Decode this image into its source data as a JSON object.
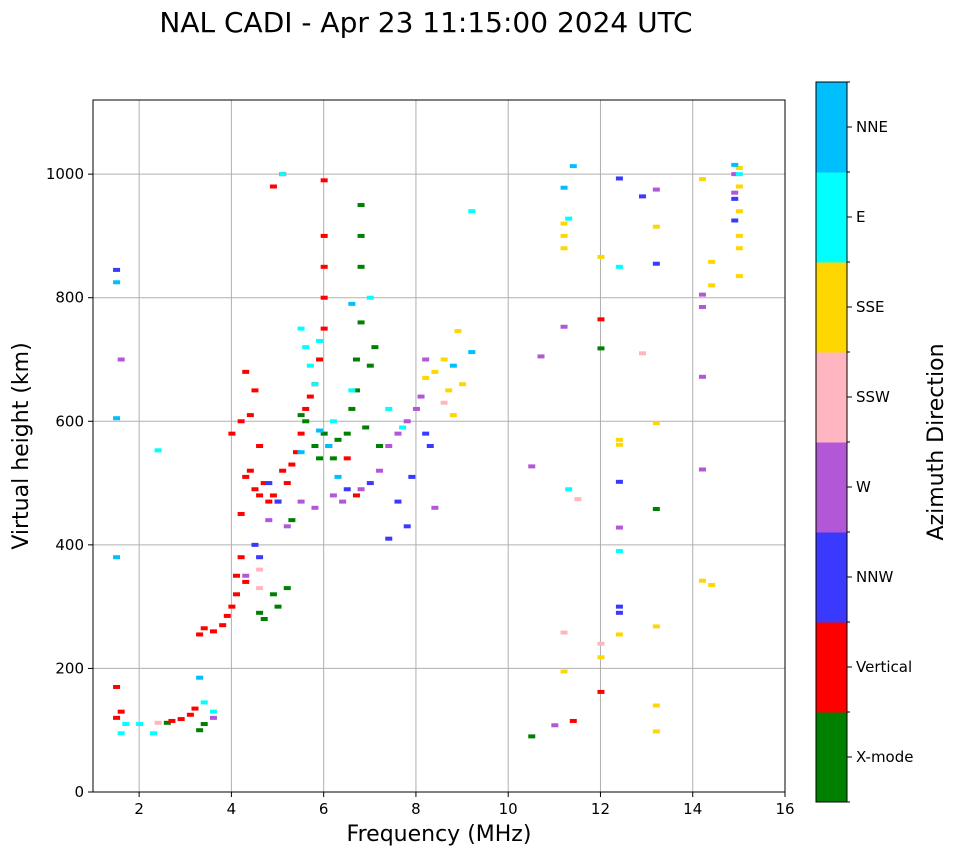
{
  "chart_data": {
    "type": "scatter",
    "title": "NAL CADI - Apr 23 11:15:00 2024 UTC",
    "xlabel": "Frequency (MHz)",
    "ylabel": "Virtual height (km)",
    "xlim": [
      1,
      16
    ],
    "ylim": [
      0,
      1120
    ],
    "xticks": [
      2,
      4,
      6,
      8,
      10,
      12,
      14,
      16
    ],
    "yticks": [
      0,
      200,
      400,
      600,
      800,
      1000
    ],
    "grid": true,
    "colorbar": {
      "title": "Azimuth Direction",
      "categories": [
        {
          "name": "X-mode",
          "color": "#008000"
        },
        {
          "name": "Vertical",
          "color": "#ff0000"
        },
        {
          "name": "NNW",
          "color": "#3a3aff"
        },
        {
          "name": "W",
          "color": "#b257d6"
        },
        {
          "name": "SSW",
          "color": "#ffb6c1"
        },
        {
          "name": "SSE",
          "color": "#ffd700"
        },
        {
          "name": "E",
          "color": "#00ffff"
        },
        {
          "name": "NNE",
          "color": "#00bfff"
        }
      ]
    },
    "series": [
      {
        "name": "X-mode",
        "points": [
          [
            2.6,
            112
          ],
          [
            3.3,
            100
          ],
          [
            3.4,
            110
          ],
          [
            5.0,
            300
          ],
          [
            5.2,
            330
          ],
          [
            4.9,
            320
          ],
          [
            4.6,
            290
          ],
          [
            4.7,
            280
          ],
          [
            5.3,
            440
          ],
          [
            5.5,
            610
          ],
          [
            5.6,
            600
          ],
          [
            5.8,
            560
          ],
          [
            5.9,
            540
          ],
          [
            6.0,
            580
          ],
          [
            6.1,
            560
          ],
          [
            6.2,
            540
          ],
          [
            6.3,
            570
          ],
          [
            6.5,
            580
          ],
          [
            6.6,
            620
          ],
          [
            6.7,
            650
          ],
          [
            6.7,
            700
          ],
          [
            6.8,
            760
          ],
          [
            6.8,
            850
          ],
          [
            6.8,
            900
          ],
          [
            6.8,
            950
          ],
          [
            7.0,
            690
          ],
          [
            7.1,
            720
          ],
          [
            7.2,
            560
          ],
          [
            6.9,
            590
          ],
          [
            10.5,
            90
          ],
          [
            12.0,
            718
          ],
          [
            13.2,
            458
          ]
        ]
      },
      {
        "name": "Vertical",
        "points": [
          [
            1.5,
            170
          ],
          [
            1.5,
            120
          ],
          [
            1.6,
            130
          ],
          [
            2.7,
            115
          ],
          [
            2.9,
            118
          ],
          [
            3.1,
            125
          ],
          [
            3.2,
            135
          ],
          [
            3.3,
            255
          ],
          [
            3.4,
            265
          ],
          [
            3.6,
            260
          ],
          [
            3.8,
            270
          ],
          [
            3.9,
            285
          ],
          [
            4.0,
            300
          ],
          [
            4.1,
            320
          ],
          [
            4.1,
            350
          ],
          [
            4.2,
            380
          ],
          [
            4.3,
            340
          ],
          [
            4.2,
            450
          ],
          [
            4.3,
            510
          ],
          [
            4.4,
            520
          ],
          [
            4.5,
            490
          ],
          [
            4.6,
            480
          ],
          [
            4.7,
            500
          ],
          [
            4.8,
            470
          ],
          [
            4.9,
            480
          ],
          [
            5.0,
            470
          ],
          [
            5.1,
            520
          ],
          [
            5.2,
            500
          ],
          [
            5.3,
            530
          ],
          [
            5.4,
            550
          ],
          [
            5.5,
            580
          ],
          [
            5.6,
            620
          ],
          [
            5.7,
            640
          ],
          [
            5.8,
            660
          ],
          [
            5.9,
            700
          ],
          [
            6.0,
            750
          ],
          [
            6.0,
            800
          ],
          [
            6.0,
            850
          ],
          [
            6.0,
            900
          ],
          [
            6.0,
            990
          ],
          [
            4.0,
            580
          ],
          [
            4.2,
            600
          ],
          [
            4.4,
            610
          ],
          [
            4.6,
            560
          ],
          [
            4.3,
            680
          ],
          [
            4.5,
            650
          ],
          [
            4.9,
            980
          ],
          [
            5.1,
            1000
          ],
          [
            6.5,
            540
          ],
          [
            6.7,
            480
          ],
          [
            11.4,
            115
          ],
          [
            12.0,
            765
          ],
          [
            12.0,
            162
          ]
        ]
      },
      {
        "name": "NNW",
        "points": [
          [
            1.5,
            845
          ],
          [
            4.5,
            400
          ],
          [
            4.6,
            380
          ],
          [
            4.8,
            500
          ],
          [
            5.0,
            470
          ],
          [
            6.5,
            490
          ],
          [
            7.0,
            500
          ],
          [
            7.4,
            410
          ],
          [
            7.6,
            470
          ],
          [
            7.8,
            430
          ],
          [
            7.9,
            510
          ],
          [
            8.2,
            580
          ],
          [
            8.3,
            560
          ],
          [
            12.4,
            300
          ],
          [
            12.4,
            290
          ],
          [
            12.4,
            502
          ],
          [
            12.4,
            993
          ],
          [
            12.9,
            964
          ],
          [
            13.2,
            855
          ],
          [
            14.9,
            925
          ],
          [
            14.9,
            960
          ]
        ]
      },
      {
        "name": "W",
        "points": [
          [
            1.6,
            700
          ],
          [
            3.6,
            120
          ],
          [
            4.3,
            350
          ],
          [
            4.8,
            440
          ],
          [
            5.2,
            430
          ],
          [
            5.5,
            470
          ],
          [
            5.8,
            460
          ],
          [
            6.2,
            480
          ],
          [
            6.4,
            470
          ],
          [
            6.8,
            490
          ],
          [
            7.2,
            520
          ],
          [
            7.4,
            560
          ],
          [
            7.6,
            580
          ],
          [
            7.8,
            600
          ],
          [
            8.0,
            620
          ],
          [
            8.1,
            640
          ],
          [
            8.2,
            700
          ],
          [
            8.4,
            460
          ],
          [
            10.7,
            705
          ],
          [
            10.5,
            527
          ],
          [
            11.2,
            753
          ],
          [
            12.4,
            428
          ],
          [
            13.2,
            975
          ],
          [
            14.2,
            522
          ],
          [
            14.2,
            672
          ],
          [
            14.2,
            785
          ],
          [
            14.2,
            805
          ],
          [
            14.9,
            970
          ],
          [
            14.9,
            1000
          ],
          [
            11.0,
            108
          ]
        ]
      },
      {
        "name": "SSW",
        "points": [
          [
            2.4,
            112
          ],
          [
            4.6,
            360
          ],
          [
            4.6,
            330
          ],
          [
            8.6,
            630
          ],
          [
            12.9,
            710
          ],
          [
            11.2,
            258
          ],
          [
            11.5,
            474
          ],
          [
            12.0,
            240
          ]
        ]
      },
      {
        "name": "SSE",
        "points": [
          [
            8.2,
            670
          ],
          [
            8.4,
            680
          ],
          [
            8.6,
            700
          ],
          [
            8.7,
            650
          ],
          [
            8.8,
            610
          ],
          [
            8.9,
            746
          ],
          [
            9.0,
            660
          ],
          [
            11.2,
            880
          ],
          [
            11.2,
            900
          ],
          [
            11.2,
            920
          ],
          [
            11.2,
            195
          ],
          [
            12.0,
            866
          ],
          [
            12.0,
            218
          ],
          [
            12.4,
            255
          ],
          [
            12.4,
            562
          ],
          [
            12.4,
            570
          ],
          [
            13.2,
            597
          ],
          [
            13.2,
            915
          ],
          [
            13.2,
            268
          ],
          [
            13.2,
            140
          ],
          [
            13.2,
            98
          ],
          [
            14.2,
            992
          ],
          [
            14.2,
            342
          ],
          [
            14.4,
            858
          ],
          [
            14.4,
            820
          ],
          [
            14.4,
            335
          ],
          [
            15.0,
            835
          ],
          [
            15.0,
            880
          ],
          [
            15.0,
            900
          ],
          [
            15.0,
            940
          ],
          [
            15.0,
            980
          ],
          [
            15.0,
            1010
          ]
        ]
      },
      {
        "name": "E",
        "points": [
          [
            1.6,
            95
          ],
          [
            1.7,
            110
          ],
          [
            2.3,
            95
          ],
          [
            2.0,
            110
          ],
          [
            2.4,
            553
          ],
          [
            3.4,
            145
          ],
          [
            3.6,
            130
          ],
          [
            5.1,
            1000
          ],
          [
            5.6,
            720
          ],
          [
            5.7,
            690
          ],
          [
            5.8,
            660
          ],
          [
            5.9,
            730
          ],
          [
            5.5,
            750
          ],
          [
            6.2,
            600
          ],
          [
            6.6,
            650
          ],
          [
            7.0,
            800
          ],
          [
            7.4,
            620
          ],
          [
            7.7,
            590
          ],
          [
            9.2,
            940
          ],
          [
            11.3,
            928
          ],
          [
            11.3,
            490
          ],
          [
            12.4,
            390
          ],
          [
            12.4,
            850
          ],
          [
            15.0,
            1000
          ]
        ]
      },
      {
        "name": "NNE",
        "points": [
          [
            1.5,
            825
          ],
          [
            1.5,
            605
          ],
          [
            1.5,
            380
          ],
          [
            3.3,
            185
          ],
          [
            5.5,
            550
          ],
          [
            5.9,
            585
          ],
          [
            6.1,
            560
          ],
          [
            6.3,
            510
          ],
          [
            6.6,
            790
          ],
          [
            8.8,
            690
          ],
          [
            9.2,
            712
          ],
          [
            11.2,
            978
          ],
          [
            11.4,
            1013
          ],
          [
            14.9,
            1015
          ]
        ]
      }
    ]
  }
}
